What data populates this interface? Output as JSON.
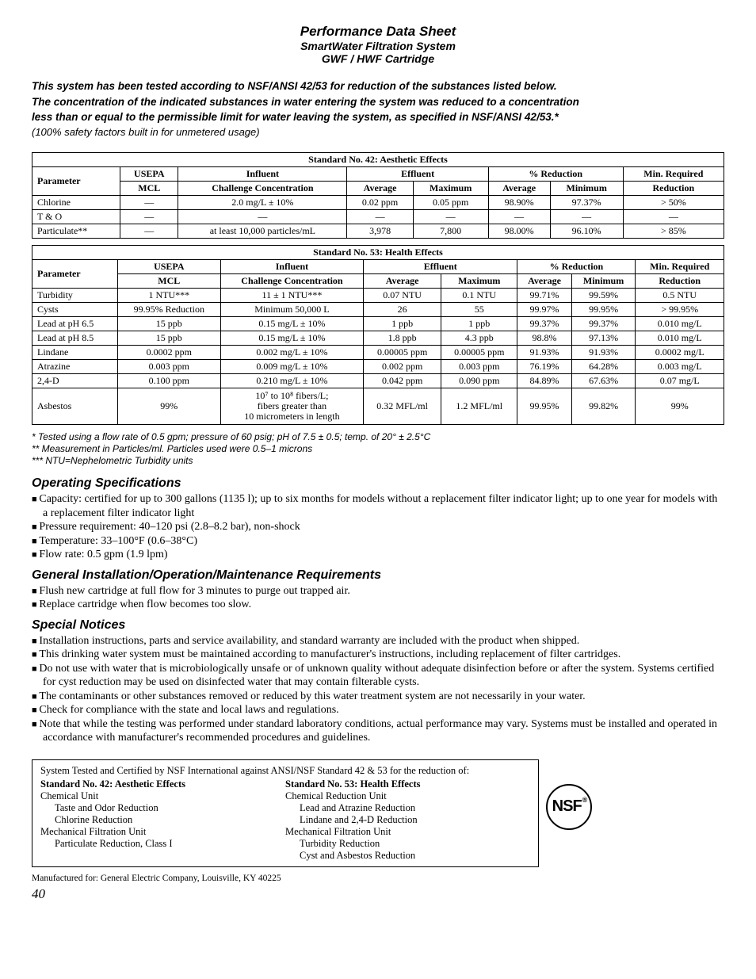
{
  "header": {
    "title": "Performance Data Sheet",
    "subtitle": "SmartWater Filtration System",
    "model": "GWF / HWF Cartridge"
  },
  "intro": {
    "line1": "This system has been tested according to NSF/ANSI 42/53 for reduction of the substances listed below.",
    "line2": "The concentration of the indicated substances in water entering the system was reduced to a concentration",
    "line3": "less than or equal to the permissible limit for water leaving the system, as specified in NSF/ANSI 42/53.*",
    "safety": "(100% safety factors built in for unmetered usage)"
  },
  "table42": {
    "caption": "Standard No. 42: Aesthetic Effects",
    "headers": {
      "param": "Parameter",
      "mcl1": "USEPA",
      "mcl2": "MCL",
      "infl1": "Influent",
      "infl2": "Challenge Concentration",
      "effl": "Effluent",
      "effl_avg": "Average",
      "effl_max": "Maximum",
      "red": "% Reduction",
      "red_avg": "Average",
      "red_min": "Minimum",
      "minreq1": "Min. Required",
      "minreq2": "Reduction"
    },
    "rows": [
      {
        "p": "Chlorine",
        "mcl": "—",
        "infl": "2.0 mg/L ± 10%",
        "eavg": "0.02 ppm",
        "emax": "0.05 ppm",
        "ravg": "98.90%",
        "rmin": "97.37%",
        "minreq": "> 50%"
      },
      {
        "p": "T & O",
        "mcl": "—",
        "infl": "—",
        "eavg": "—",
        "emax": "—",
        "ravg": "—",
        "rmin": "—",
        "minreq": "—"
      },
      {
        "p": "Particulate**",
        "mcl": "—",
        "infl": "at least 10,000 particles/mL",
        "eavg": "3,978",
        "emax": "7,800",
        "ravg": "98.00%",
        "rmin": "96.10%",
        "minreq": "> 85%"
      }
    ]
  },
  "table53": {
    "caption": "Standard No. 53: Health Effects",
    "rows": [
      {
        "p": "Turbidity",
        "mcl": "1 NTU***",
        "infl": "11 ± 1 NTU***",
        "eavg": "0.07 NTU",
        "emax": "0.1 NTU",
        "ravg": "99.71%",
        "rmin": "99.59%",
        "minreq": "0.5 NTU"
      },
      {
        "p": "Cysts",
        "mcl": "99.95% Reduction",
        "infl": "Minimum 50,000 L",
        "eavg": "26",
        "emax": "55",
        "ravg": "99.97%",
        "rmin": "99.95%",
        "minreq": "> 99.95%"
      },
      {
        "p": "Lead at pH 6.5",
        "mcl": "15 ppb",
        "infl": "0.15 mg/L ± 10%",
        "eavg": "1 ppb",
        "emax": "1 ppb",
        "ravg": "99.37%",
        "rmin": "99.37%",
        "minreq": "0.010 mg/L"
      },
      {
        "p": "Lead at pH 8.5",
        "mcl": "15 ppb",
        "infl": "0.15 mg/L ± 10%",
        "eavg": "1.8 ppb",
        "emax": "4.3 ppb",
        "ravg": "98.8%",
        "rmin": "97.13%",
        "minreq": "0.010 mg/L"
      },
      {
        "p": "Lindane",
        "mcl": "0.0002 ppm",
        "infl": "0.002 mg/L ± 10%",
        "eavg": "0.00005 ppm",
        "emax": "0.00005 ppm",
        "ravg": "91.93%",
        "rmin": "91.93%",
        "minreq": "0.0002 mg/L"
      },
      {
        "p": "Atrazine",
        "mcl": "0.003 ppm",
        "infl": "0.009 mg/L ± 10%",
        "eavg": "0.002 ppm",
        "emax": "0.003 ppm",
        "ravg": "76.19%",
        "rmin": "64.28%",
        "minreq": "0.003 mg/L"
      },
      {
        "p": "2,4-D",
        "mcl": "0.100 ppm",
        "infl": "0.210 mg/L ± 10%",
        "eavg": "0.042 ppm",
        "emax": "0.090 ppm",
        "ravg": "84.89%",
        "rmin": "67.63%",
        "minreq": "0.07 mg/L"
      },
      {
        "p": "Asbestos",
        "mcl": "99%",
        "infl": "10⁷ to 10⁸ fibers/L;|fibers greater than|10 micrometers in length",
        "eavg": "0.32 MFL/ml",
        "emax": "1.2 MFL/ml",
        "ravg": "99.95%",
        "rmin": "99.82%",
        "minreq": "99%"
      }
    ]
  },
  "footnotes": {
    "f1": "* Tested using a flow rate of 0.5 gpm; pressure of 60 psig; pH of 7.5 ± 0.5; temp. of 20° ± 2.5°C",
    "f2": "** Measurement in Particles/ml. Particles used were 0.5–1 microns",
    "f3": "*** NTU=Nephelometric Turbidity units"
  },
  "opspec": {
    "title": "Operating Specifications",
    "items": [
      "Capacity: certified for up to 300 gallons (1135 l); up to six months for models without a replacement filter indicator light; up to one year for models with a replacement filter indicator light",
      "Pressure requirement: 40–120 psi (2.8–8.2 bar), non-shock",
      "Temperature: 33–100°F (0.6–38°C)",
      "Flow rate: 0.5 gpm (1.9 lpm)"
    ]
  },
  "install": {
    "title": "General Installation/Operation/Maintenance Requirements",
    "items": [
      "Flush new cartridge at full flow for 3 minutes to purge out trapped air.",
      "Replace cartridge when flow becomes too slow."
    ]
  },
  "special": {
    "title": "Special Notices",
    "items": [
      "Installation instructions, parts and service availability, and standard warranty are included with the product when shipped.",
      "This drinking water system must be maintained according to manufacturer's instructions, including replacement of filter cartridges.",
      "Do not use with water that is microbiologically unsafe or of unknown quality without adequate disinfection before or after the system. Systems certified for cyst reduction may be used on disinfected water that may contain filterable cysts.",
      "The contaminants or other substances removed or reduced by this water treatment system are not necessarily in your water.",
      "Check for compliance with the state and local laws and regulations.",
      "Note that while the testing was performed under standard laboratory conditions, actual performance may vary. Systems must be installed and operated in accordance with manufacturer's recommended procedures and guidelines."
    ]
  },
  "cert": {
    "intro": "System Tested and Certified by NSF International against ANSI/NSF Standard 42 & 53 for the reduction of:",
    "s42_title": "Standard No. 42: Aesthetic Effects",
    "s42_l1": "Chemical Unit",
    "s42_l2": "Taste and Odor Reduction",
    "s42_l3": "Chlorine Reduction",
    "s42_l4": "Mechanical Filtration Unit",
    "s42_l5": "Particulate Reduction, Class I",
    "s53_title": "Standard No. 53: Health Effects",
    "s53_l1": "Chemical Reduction Unit",
    "s53_l2": "Lead and Atrazine Reduction",
    "s53_l3": "Lindane and 2,4-D Reduction",
    "s53_l4": "Mechanical Filtration Unit",
    "s53_l5": "Turbidity Reduction",
    "s53_l6": "Cyst and Asbestos Reduction",
    "nsf": "NSF",
    "reg": "®"
  },
  "manufactured": "Manufactured for: General Electric Company, Louisville, KY 40225",
  "page": "40"
}
